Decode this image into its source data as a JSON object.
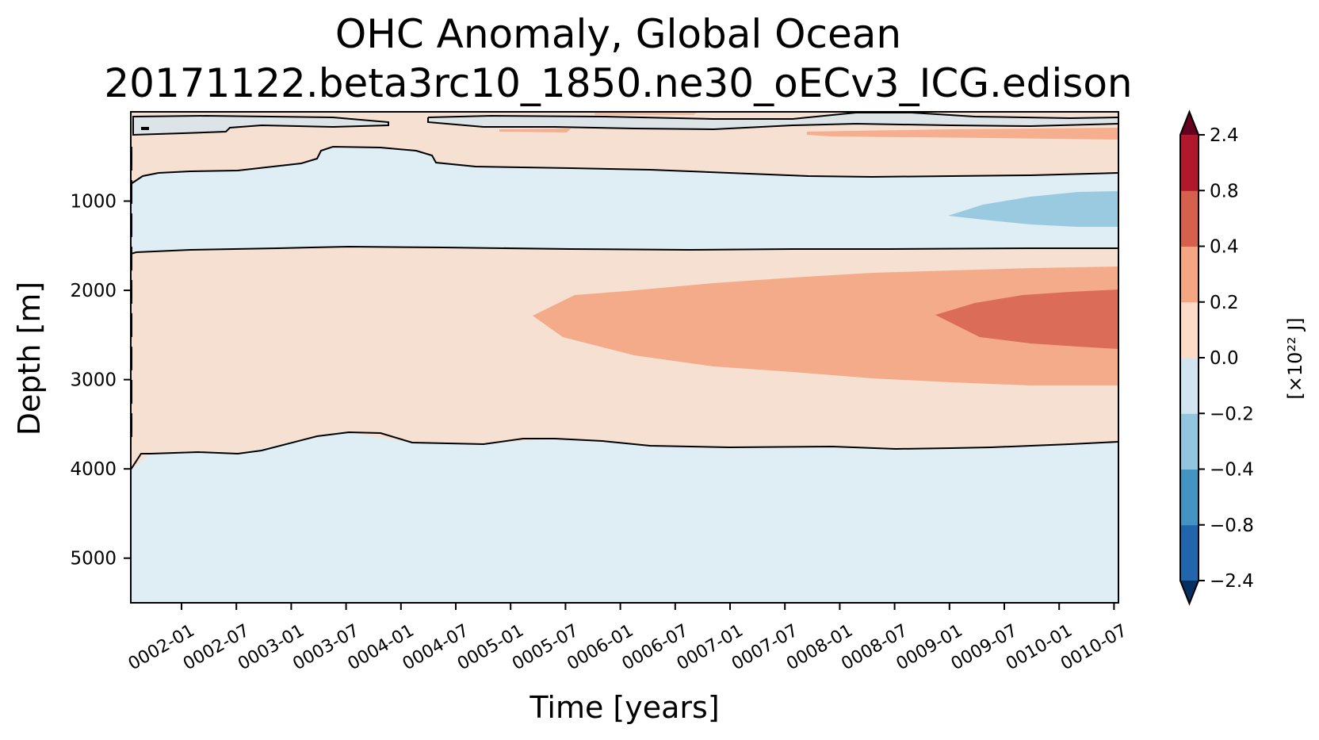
{
  "chart_data": {
    "type": "heatmap",
    "subtype": "filled-contour",
    "title": "OHC Anomaly, Global Ocean",
    "subtitle": "20171122.beta3rc10_1850.ne30_oECv3_ICG.edison",
    "xlabel": "Time [years]",
    "ylabel": "Depth [m]",
    "x_tick_labels": [
      "0002-01",
      "0002-07",
      "0003-01",
      "0003-07",
      "0004-01",
      "0004-07",
      "0005-01",
      "0005-07",
      "0006-01",
      "0006-07",
      "0007-01",
      "0007-07",
      "0008-01",
      "0008-07",
      "0009-01",
      "0009-07",
      "0010-01",
      "0010-07"
    ],
    "y_ticks": [
      1000,
      2000,
      3000,
      4000,
      5000
    ],
    "y_tick_labels": [
      "1000",
      "2000",
      "3000",
      "4000",
      "5000"
    ],
    "ylim": [
      5500,
      0
    ],
    "y_inverted": true,
    "grid": false,
    "colorbar": {
      "label": "[×10²² J]",
      "levels": [
        -2.4,
        -0.8,
        -0.4,
        -0.2,
        0.0,
        0.2,
        0.4,
        0.8,
        2.4
      ],
      "tick_labels": [
        "−2.4",
        "−0.8",
        "−0.4",
        "−0.2",
        "0.0",
        "0.2",
        "0.4",
        "0.8",
        "2.4"
      ],
      "colors": [
        "#2166ac",
        "#4393c3",
        "#92c5de",
        "#d1e5f0",
        "#fddbc7",
        "#f4a582",
        "#d6604d",
        "#b2182b"
      ],
      "under_color": "#053061",
      "over_color": "#67001f",
      "extend": "both"
    },
    "contour_line_color": "#000000"
  }
}
